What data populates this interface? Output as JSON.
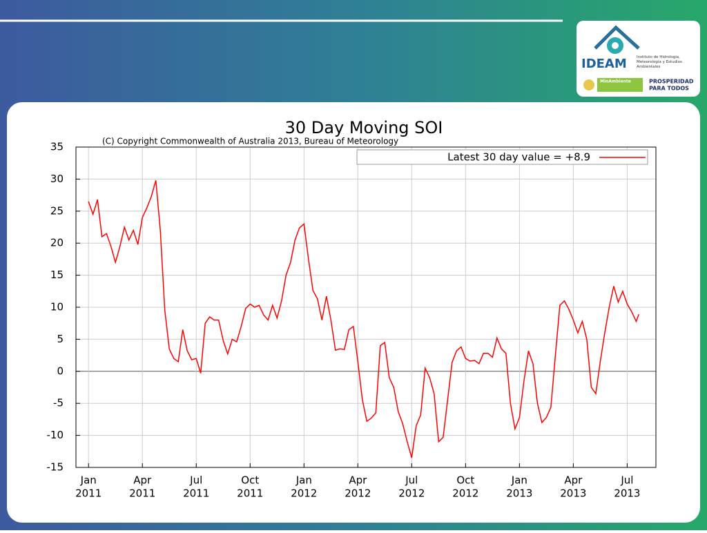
{
  "logo": {
    "name": "IDEAM",
    "institute": "Instituto de Hidrología, Meteorología y Estudios Ambientales",
    "ministry": "MinAmbiente",
    "slogan1": "PROSPERIDAD",
    "slogan2": "PARA TODOS"
  },
  "chart_data": {
    "type": "line",
    "title": "30 Day Moving SOI",
    "subtitle": "(C) Copyright Commonwealth of Australia 2013, Bureau of Meteorology",
    "x": [
      0,
      0.25,
      0.5,
      0.75,
      1,
      1.25,
      1.5,
      1.75,
      2,
      2.25,
      2.5,
      2.75,
      3,
      3.25,
      3.5,
      3.75,
      4,
      4.25,
      4.5,
      4.75,
      5,
      5.25,
      5.5,
      5.75,
      6,
      6.25,
      6.5,
      6.75,
      7,
      7.25,
      7.5,
      7.75,
      8,
      8.25,
      8.5,
      8.75,
      9,
      9.25,
      9.5,
      9.75,
      10,
      10.25,
      10.5,
      10.75,
      11,
      11.25,
      11.5,
      11.75,
      12,
      12.25,
      12.5,
      12.75,
      13,
      13.25,
      13.5,
      13.75,
      14,
      14.25,
      14.5,
      14.75,
      15,
      15.25,
      15.5,
      15.75,
      16,
      16.25,
      16.5,
      16.75,
      17,
      17.25,
      17.5,
      17.75,
      18,
      18.25,
      18.5,
      18.75,
      19,
      19.25,
      19.5,
      19.75,
      20,
      20.25,
      20.5,
      20.75,
      21,
      21.25,
      21.5,
      21.75,
      22,
      22.25,
      22.5,
      22.75,
      23,
      23.25,
      23.5,
      23.75,
      24,
      24.25,
      24.5,
      24.75,
      25,
      25.25,
      25.5,
      25.75,
      26,
      26.25,
      26.5,
      26.75,
      27,
      27.25,
      27.5,
      27.75,
      28,
      28.25,
      28.5,
      28.75,
      29,
      29.25,
      29.5,
      29.75,
      30,
      30.25,
      30.5,
      30.65
    ],
    "series": [
      {
        "name": "Latest 30 day value = +8.9",
        "color": "#ff0000",
        "values": [
          26.5,
          24.5,
          26.8,
          21,
          21.5,
          19.5,
          17,
          19.5,
          22.5,
          20.5,
          22,
          19.8,
          24,
          25.5,
          27.3,
          29.8,
          22,
          9.5,
          3.5,
          2,
          1.5,
          6.5,
          3.2,
          1.8,
          2,
          -0.3,
          7.5,
          8.5,
          8,
          8,
          4.8,
          2.7,
          5,
          4.6,
          7,
          9.8,
          10.5,
          10,
          10.3,
          8.8,
          8,
          10.3,
          8.3,
          11,
          15,
          17,
          20.5,
          22.4,
          23,
          17.5,
          12.6,
          11.3,
          8,
          11.7,
          8,
          3.3,
          3.5,
          3.4,
          6.5,
          7,
          1.5,
          -4.4,
          -7.8,
          -7.3,
          -6.5,
          4,
          4.5,
          -1,
          -2.5,
          -6.3,
          -8.2,
          -11,
          -13.5,
          -8.5,
          -6.8,
          0.5,
          -1,
          -3.5,
          -11,
          -10.3,
          -4.5,
          1.4,
          3.2,
          3.8,
          2,
          1.6,
          1.7,
          1.2,
          2.8,
          2.8,
          2.2,
          5.2,
          3.5,
          2.8,
          -5,
          -9,
          -7.2,
          -1.5,
          3.2,
          1.2,
          -5,
          -8,
          -7.2,
          -5.6,
          2.5,
          10.3,
          11,
          9.7,
          8,
          6,
          7.8,
          5,
          -2.5,
          -3.5,
          1.5,
          6,
          10,
          13.3,
          10.8,
          12.5,
          10.5,
          9.3,
          7.8,
          8.9
        ]
      }
    ],
    "xlim": [
      -0.7,
      31.6
    ],
    "xticks": [
      {
        "value": 0,
        "label": "Jan",
        "year": "2011"
      },
      {
        "value": 3,
        "label": "Apr",
        "year": "2011"
      },
      {
        "value": 6,
        "label": "Jul",
        "year": "2011"
      },
      {
        "value": 9,
        "label": "Oct",
        "year": "2011"
      },
      {
        "value": 12,
        "label": "Jan",
        "year": "2012"
      },
      {
        "value": 15,
        "label": "Apr",
        "year": "2012"
      },
      {
        "value": 18,
        "label": "Jul",
        "year": "2012"
      },
      {
        "value": 21,
        "label": "Oct",
        "year": "2012"
      },
      {
        "value": 24,
        "label": "Jan",
        "year": "2013"
      },
      {
        "value": 27,
        "label": "Apr",
        "year": "2013"
      },
      {
        "value": 30,
        "label": "Jul",
        "year": "2013"
      }
    ],
    "ylim": [
      -15,
      35
    ],
    "yticks": [
      -15,
      -10,
      -5,
      0,
      5,
      10,
      15,
      20,
      25,
      30,
      35
    ],
    "grid": true,
    "legend": "upper right"
  }
}
